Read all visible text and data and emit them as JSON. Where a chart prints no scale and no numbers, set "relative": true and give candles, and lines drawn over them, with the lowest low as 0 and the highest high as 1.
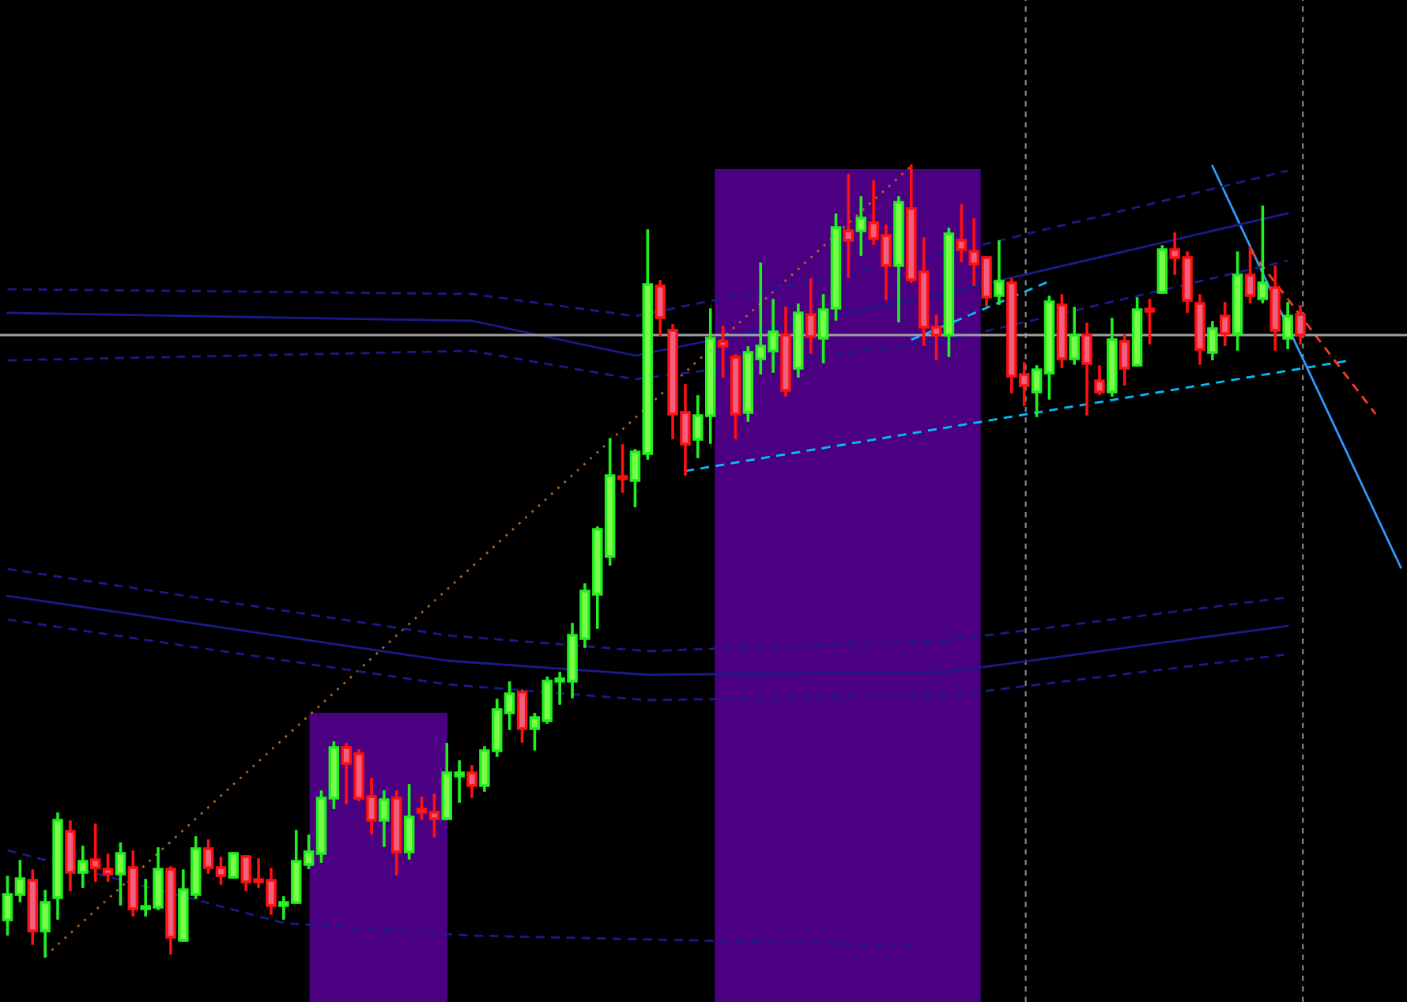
{
  "chart_data": {
    "type": "candlestick",
    "relative": true,
    "categories": [
      null,
      null,
      null,
      null,
      null,
      null,
      null,
      null,
      null,
      null,
      null,
      null,
      null,
      null,
      null,
      null,
      null,
      null,
      null,
      null,
      null,
      null,
      null,
      null,
      null,
      null,
      null,
      null,
      null,
      null,
      null,
      null,
      null,
      null,
      null,
      null,
      null,
      null,
      null,
      null,
      null,
      null,
      null,
      null,
      null,
      null,
      null,
      null,
      null,
      null,
      null,
      null,
      null,
      null,
      null,
      null,
      null,
      null,
      null,
      null,
      null,
      null,
      null,
      null,
      null,
      null,
      null,
      null,
      null,
      null,
      null,
      null,
      null,
      null,
      null,
      null,
      null,
      null,
      null,
      null,
      null,
      null,
      null,
      null,
      null,
      null,
      null,
      null,
      null,
      null,
      null,
      null,
      null,
      null,
      null,
      null,
      null,
      null,
      null,
      null,
      null,
      null,
      null,
      null,
      null,
      null,
      null,
      null,
      null,
      null,
      null,
      null
    ],
    "ohlc": [
      [
        0.046,
        0.1,
        0.028,
        0.078
      ],
      [
        0.078,
        0.12,
        0.07,
        0.098
      ],
      [
        0.096,
        0.108,
        0.016,
        0.032
      ],
      [
        0.032,
        0.082,
        0,
        0.068
      ],
      [
        0.074,
        0.18,
        0.048,
        0.172
      ],
      [
        0.158,
        0.17,
        0.084,
        0.106
      ],
      [
        0.106,
        0.138,
        0.088,
        0.12
      ],
      [
        0.122,
        0.166,
        0.096,
        0.112
      ],
      [
        0.11,
        0.128,
        0.096,
        0.104
      ],
      [
        0.104,
        0.142,
        0.066,
        0.13
      ],
      [
        0.112,
        0.132,
        0.052,
        0.06
      ],
      [
        0.06,
        0.096,
        0.052,
        0.062
      ],
      [
        0.062,
        0.136,
        0.06,
        0.11
      ],
      [
        0.11,
        0.112,
        0.004,
        0.024
      ],
      [
        0.02,
        0.108,
        0.02,
        0.084
      ],
      [
        0.078,
        0.15,
        0.074,
        0.136
      ],
      [
        0.136,
        0.146,
        0.106,
        0.112
      ],
      [
        0.112,
        0.124,
        0.092,
        0.102
      ],
      [
        0.1,
        0.13,
        0.1,
        0.13
      ],
      [
        0.126,
        0.126,
        0.084,
        0.094
      ],
      [
        0.096,
        0.122,
        0.088,
        0.094
      ],
      [
        0.096,
        0.11,
        0.054,
        0.064
      ],
      [
        0.064,
        0.074,
        0.048,
        0.068
      ],
      [
        0.068,
        0.158,
        0.068,
        0.12
      ],
      [
        0.116,
        0.152,
        0.112,
        0.132
      ],
      [
        0.13,
        0.208,
        0.12,
        0.2
      ],
      [
        0.2,
        0.27,
        0.188,
        0.264
      ],
      [
        0.264,
        0.268,
        0.194,
        0.244
      ],
      [
        0.256,
        0.26,
        0.198,
        0.2
      ],
      [
        0.202,
        0.224,
        0.156,
        0.172
      ],
      [
        0.172,
        0.208,
        0.14,
        0.198
      ],
      [
        0.2,
        0.208,
        0.104,
        0.132
      ],
      [
        0.132,
        0.216,
        0.124,
        0.176
      ],
      [
        0.186,
        0.2,
        0.174,
        0.182
      ],
      [
        0.182,
        0.204,
        0.152,
        0.174
      ],
      [
        0.174,
        0.268,
        0.174,
        0.232
      ],
      [
        0.228,
        0.246,
        0.196,
        0.232
      ],
      [
        0.232,
        0.24,
        0.202,
        0.216
      ],
      [
        0.216,
        0.264,
        0.21,
        0.26
      ],
      [
        0.26,
        0.324,
        0.254,
        0.312
      ],
      [
        0.308,
        0.346,
        0.288,
        0.332
      ],
      [
        0.334,
        0.336,
        0.272,
        0.288
      ],
      [
        0.288,
        0.306,
        0.262,
        0.302
      ],
      [
        0.298,
        0.352,
        0.296,
        0.348
      ],
      [
        0.348,
        0.358,
        0.32,
        0.35
      ],
      [
        0.348,
        0.42,
        0.328,
        0.406
      ],
      [
        0.402,
        0.47,
        0.392,
        0.462
      ],
      [
        0.458,
        0.542,
        0.416,
        0.54
      ],
      [
        0.506,
        0.654,
        0.496,
        0.608
      ],
      [
        0.606,
        0.646,
        0.588,
        0.604
      ],
      [
        0.602,
        0.64,
        0.57,
        0.638
      ],
      [
        0.636,
        0.918,
        0.63,
        0.85
      ],
      [
        0.848,
        0.854,
        0.786,
        0.808
      ],
      [
        0.792,
        0.798,
        0.656,
        0.686
      ],
      [
        0.688,
        0.722,
        0.61,
        0.648
      ],
      [
        0.654,
        0.708,
        0.632,
        0.684
      ],
      [
        0.684,
        0.818,
        0.65,
        0.782
      ],
      [
        0.778,
        0.796,
        0.734,
        0.772
      ],
      [
        0.758,
        0.76,
        0.656,
        0.686
      ],
      [
        0.688,
        0.77,
        0.678,
        0.764
      ],
      [
        0.756,
        0.876,
        0.738,
        0.772
      ],
      [
        0.766,
        0.83,
        0.74,
        0.79
      ],
      [
        0.786,
        0.82,
        0.71,
        0.716
      ],
      [
        0.744,
        0.824,
        0.734,
        0.814
      ],
      [
        0.812,
        0.856,
        0.764,
        0.784
      ],
      [
        0.782,
        0.836,
        0.752,
        0.818
      ],
      [
        0.82,
        0.938,
        0.806,
        0.922
      ],
      [
        0.918,
        0.988,
        0.86,
        0.906
      ],
      [
        0.918,
        0.96,
        0.888,
        0.934
      ],
      [
        0.928,
        0.98,
        0.902,
        0.908
      ],
      [
        0.912,
        0.924,
        0.832,
        0.874
      ],
      [
        0.874,
        0.96,
        0.804,
        0.954
      ],
      [
        0.946,
        1.0,
        0.854,
        0.856
      ],
      [
        0.866,
        0.908,
        0.774,
        0.796
      ],
      [
        0.796,
        0.81,
        0.756,
        0.786
      ],
      [
        0.786,
        0.92,
        0.76,
        0.914
      ],
      [
        0.906,
        0.95,
        0.88,
        0.894
      ],
      [
        0.892,
        0.932,
        0.85,
        0.876
      ],
      [
        0.884,
        0.884,
        0.824,
        0.834
      ],
      [
        0.836,
        0.904,
        0.826,
        0.854
      ],
      [
        0.852,
        0.856,
        0.714,
        0.734
      ],
      [
        0.736,
        0.75,
        0.698,
        0.722
      ],
      [
        0.714,
        0.746,
        0.684,
        0.742
      ],
      [
        0.738,
        0.834,
        0.706,
        0.828
      ],
      [
        0.824,
        0.836,
        0.746,
        0.756
      ],
      [
        0.756,
        0.82,
        0.75,
        0.786
      ],
      [
        0.786,
        0.8,
        0.686,
        0.75
      ],
      [
        0.728,
        0.746,
        0.712,
        0.714
      ],
      [
        0.714,
        0.806,
        0.71,
        0.78
      ],
      [
        0.778,
        0.786,
        0.724,
        0.744
      ],
      [
        0.748,
        0.832,
        0.748,
        0.818
      ],
      [
        0.818,
        0.83,
        0.776,
        0.816
      ],
      [
        0.84,
        0.898,
        0.84,
        0.894
      ],
      [
        0.894,
        0.914,
        0.864,
        0.884
      ],
      [
        0.884,
        0.89,
        0.816,
        0.83
      ],
      [
        0.826,
        0.836,
        0.75,
        0.768
      ],
      [
        0.764,
        0.802,
        0.756,
        0.794
      ],
      [
        0.81,
        0.826,
        0.774,
        0.788
      ],
      [
        0.788,
        0.89,
        0.768,
        0.862
      ],
      [
        0.862,
        0.896,
        0.828,
        0.836
      ],
      [
        0.832,
        0.948,
        0.828,
        0.852
      ],
      [
        0.846,
        0.872,
        0.768,
        0.792
      ],
      [
        0.782,
        0.826,
        0.77,
        0.81
      ],
      [
        0.812,
        0.822,
        0.776,
        0.786
      ],
      null,
      null,
      null,
      null,
      null,
      null,
      null,
      null
    ],
    "series": [
      {
        "type": "line",
        "color": "#b5651d",
        "line_style": "dotted",
        "values": [
          null,
          null,
          null,
          0,
          null,
          null,
          null,
          null,
          null,
          null,
          null,
          null,
          null,
          null,
          null,
          null,
          null,
          null,
          null,
          null,
          null,
          null,
          null,
          null,
          null,
          null,
          null,
          null,
          null,
          null,
          null,
          null,
          null,
          null,
          null,
          null,
          null,
          null,
          null,
          null,
          null,
          null,
          null,
          null,
          null,
          null,
          null,
          null,
          null,
          null,
          null,
          null,
          null,
          null,
          null,
          null,
          null,
          null,
          null,
          null,
          null,
          null,
          null,
          null,
          null,
          null,
          null,
          null,
          null,
          null,
          null,
          null,
          1.0,
          null,
          null,
          null,
          null,
          null,
          null,
          null,
          null,
          null,
          null,
          null,
          null,
          null,
          null,
          null,
          null,
          null,
          null,
          null,
          null,
          null,
          null,
          null,
          null,
          null,
          null,
          null,
          null,
          null,
          null,
          null,
          null,
          null,
          null,
          null,
          null,
          null,
          null,
          null
        ]
      },
      {
        "type": "line",
        "color": "#00bfff",
        "line_style": "dashed",
        "values": [
          null,
          null,
          null,
          null,
          null,
          null,
          null,
          null,
          null,
          null,
          null,
          null,
          null,
          null,
          null,
          null,
          null,
          null,
          null,
          null,
          null,
          null,
          null,
          null,
          null,
          null,
          null,
          null,
          null,
          null,
          null,
          null,
          null,
          null,
          null,
          null,
          null,
          null,
          null,
          null,
          null,
          null,
          null,
          null,
          null,
          null,
          null,
          null,
          null,
          null,
          null,
          null,
          null,
          null,
          0.614,
          null,
          null,
          null,
          null,
          null,
          null,
          null,
          null,
          null,
          null,
          null,
          null,
          null,
          null,
          null,
          null,
          null,
          null,
          null,
          null,
          null,
          null,
          null,
          null,
          null,
          null,
          null,
          null,
          null,
          null,
          null,
          null,
          null,
          null,
          null,
          null,
          null,
          null,
          null,
          null,
          null,
          null,
          null,
          null,
          null,
          null,
          null,
          null,
          null,
          null,
          null,
          null,
          0.754,
          null,
          null,
          null,
          null
        ]
      },
      {
        "type": "line",
        "color": "#00bfff",
        "line_style": "dashed",
        "values": [
          null,
          null,
          null,
          null,
          null,
          null,
          null,
          null,
          null,
          null,
          null,
          null,
          null,
          null,
          null,
          null,
          null,
          null,
          null,
          null,
          null,
          null,
          null,
          null,
          null,
          null,
          null,
          null,
          null,
          null,
          null,
          null,
          null,
          null,
          null,
          null,
          null,
          null,
          null,
          null,
          null,
          null,
          null,
          null,
          null,
          null,
          null,
          null,
          null,
          null,
          null,
          null,
          null,
          null,
          null,
          null,
          null,
          null,
          null,
          null,
          null,
          null,
          null,
          null,
          null,
          null,
          null,
          null,
          null,
          null,
          null,
          null,
          0.78,
          null,
          null,
          null,
          null,
          null,
          null,
          null,
          null,
          null,
          null,
          0.854,
          null,
          null,
          null,
          null,
          null,
          null,
          null,
          null,
          null,
          null,
          null,
          null,
          null,
          null,
          null,
          null,
          null,
          null,
          null,
          null,
          null,
          null,
          null,
          null,
          null,
          null,
          null,
          null
        ]
      },
      {
        "type": "line",
        "color": "#3399ff",
        "line_style": "solid",
        "values": [
          null,
          null,
          null,
          null,
          null,
          null,
          null,
          null,
          null,
          null,
          null,
          null,
          null,
          null,
          null,
          null,
          null,
          null,
          null,
          null,
          null,
          null,
          null,
          null,
          null,
          null,
          null,
          null,
          null,
          null,
          null,
          null,
          null,
          null,
          null,
          null,
          null,
          null,
          null,
          null,
          null,
          null,
          null,
          null,
          null,
          null,
          null,
          null,
          null,
          null,
          null,
          null,
          null,
          null,
          null,
          null,
          null,
          null,
          null,
          null,
          null,
          null,
          null,
          null,
          null,
          null,
          null,
          null,
          null,
          null,
          null,
          null,
          null,
          null,
          null,
          null,
          null,
          null,
          null,
          null,
          null,
          null,
          null,
          null,
          null,
          null,
          null,
          null,
          null,
          null,
          null,
          null,
          null,
          null,
          null,
          null,
          1.0,
          null,
          null,
          null,
          null,
          null,
          null,
          null,
          null,
          null,
          null,
          null,
          null,
          null,
          null,
          0.492
        ]
      },
      {
        "type": "line",
        "color": "#ff3b1f",
        "line_style": "dashed",
        "values": [
          null,
          null,
          null,
          null,
          null,
          null,
          null,
          null,
          null,
          null,
          null,
          null,
          null,
          null,
          null,
          null,
          null,
          null,
          null,
          null,
          null,
          null,
          null,
          null,
          null,
          null,
          null,
          null,
          null,
          null,
          null,
          null,
          null,
          null,
          null,
          null,
          null,
          null,
          null,
          null,
          null,
          null,
          null,
          null,
          null,
          null,
          null,
          null,
          null,
          null,
          null,
          null,
          null,
          null,
          null,
          null,
          null,
          null,
          null,
          null,
          null,
          null,
          null,
          null,
          null,
          null,
          null,
          null,
          null,
          null,
          null,
          null,
          null,
          null,
          null,
          null,
          null,
          null,
          null,
          null,
          null,
          null,
          null,
          null,
          null,
          null,
          null,
          null,
          null,
          null,
          null,
          null,
          null,
          null,
          null,
          null,
          null,
          null,
          null,
          0.894,
          null,
          null,
          null,
          null,
          null,
          null,
          null,
          null,
          null,
          0.686,
          null,
          null
        ]
      },
      {
        "type": "line",
        "color": "#1a1a8c",
        "line_style": "dashed",
        "values": [
          0.844,
          null,
          null,
          null,
          null,
          null,
          null,
          null,
          null,
          null,
          null,
          null,
          null,
          null,
          null,
          null,
          null,
          null,
          null,
          null,
          null,
          null,
          null,
          null,
          null,
          null,
          null,
          null,
          null,
          null,
          null,
          null,
          null,
          null,
          null,
          null,
          null,
          0.838,
          null,
          null,
          null,
          null,
          null,
          null,
          null,
          null,
          null,
          null,
          null,
          null,
          0.81,
          null,
          null,
          null,
          null,
          null,
          null,
          null,
          null,
          null,
          null,
          null,
          null,
          null,
          null,
          null,
          null,
          null,
          null,
          null,
          null,
          null,
          null,
          null,
          null,
          0.89,
          null,
          null,
          null,
          null,
          null,
          null,
          null,
          null,
          null,
          null,
          null,
          null,
          null,
          null,
          null,
          null,
          null,
          null,
          null,
          null,
          null,
          null,
          null,
          null,
          null,
          null,
          0.994,
          null,
          null,
          null,
          null,
          null,
          null,
          null,
          null,
          null
        ]
      },
      {
        "type": "line",
        "color": "#1a1a8c",
        "line_style": "solid",
        "values": [
          0.814,
          null,
          null,
          null,
          null,
          null,
          null,
          null,
          null,
          null,
          null,
          null,
          null,
          null,
          null,
          null,
          null,
          null,
          null,
          null,
          null,
          null,
          null,
          null,
          null,
          null,
          null,
          null,
          null,
          null,
          null,
          null,
          null,
          null,
          null,
          null,
          null,
          0.804,
          null,
          null,
          null,
          null,
          null,
          null,
          null,
          null,
          null,
          null,
          null,
          null,
          0.76,
          null,
          null,
          null,
          null,
          null,
          null,
          null,
          null,
          null,
          null,
          null,
          null,
          null,
          null,
          null,
          null,
          null,
          null,
          null,
          null,
          null,
          null,
          null,
          null,
          0.84,
          null,
          null,
          null,
          null,
          null,
          null,
          null,
          null,
          null,
          null,
          null,
          null,
          null,
          null,
          null,
          null,
          null,
          null,
          null,
          null,
          null,
          null,
          null,
          null,
          null,
          null,
          0.94,
          null,
          null,
          null,
          null,
          null,
          null,
          null,
          null,
          null
        ]
      },
      {
        "type": "line",
        "color": "#1a1a8c",
        "line_style": "dashed",
        "values": [
          0.754,
          null,
          null,
          null,
          null,
          null,
          null,
          null,
          null,
          null,
          null,
          null,
          null,
          null,
          null,
          null,
          null,
          null,
          null,
          null,
          null,
          null,
          null,
          null,
          null,
          null,
          null,
          null,
          null,
          null,
          null,
          null,
          null,
          null,
          null,
          null,
          null,
          0.766,
          null,
          null,
          null,
          null,
          null,
          null,
          null,
          null,
          null,
          null,
          null,
          null,
          0.73,
          null,
          null,
          null,
          null,
          null,
          null,
          null,
          null,
          null,
          null,
          null,
          null,
          null,
          null,
          null,
          null,
          null,
          null,
          null,
          null,
          null,
          null,
          null,
          null,
          0.78,
          null,
          null,
          null,
          null,
          null,
          null,
          null,
          null,
          null,
          null,
          null,
          null,
          null,
          null,
          null,
          null,
          null,
          null,
          null,
          null,
          null,
          null,
          null,
          null,
          null,
          null,
          0.88,
          null,
          null,
          null,
          null,
          null,
          null,
          null,
          null,
          null
        ]
      },
      {
        "type": "line",
        "color": "#1a1a8c",
        "line_style": "dashed",
        "values": [
          0.49,
          null,
          null,
          null,
          null,
          null,
          null,
          null,
          null,
          null,
          null,
          null,
          null,
          null,
          null,
          null,
          null,
          null,
          null,
          null,
          null,
          null,
          null,
          null,
          null,
          null,
          null,
          null,
          null,
          null,
          null,
          null,
          null,
          null,
          null,
          0.406,
          null,
          null,
          null,
          null,
          null,
          null,
          null,
          null,
          null,
          null,
          null,
          null,
          null,
          null,
          null,
          0.386,
          null,
          null,
          null,
          null,
          null,
          null,
          null,
          null,
          null,
          null,
          null,
          null,
          null,
          null,
          null,
          null,
          null,
          null,
          null,
          null,
          null,
          null,
          null,
          0.4,
          null,
          null,
          null,
          null,
          null,
          null,
          null,
          null,
          null,
          null,
          null,
          null,
          null,
          null,
          null,
          null,
          null,
          null,
          null,
          null,
          null,
          null,
          null,
          null,
          null,
          null,
          0.454,
          null,
          null,
          null,
          null,
          null,
          null,
          null,
          null,
          null
        ]
      },
      {
        "type": "line",
        "color": "#1a1a8c",
        "line_style": "solid",
        "values": [
          0.456,
          null,
          null,
          null,
          null,
          null,
          null,
          null,
          null,
          null,
          null,
          null,
          null,
          null,
          null,
          null,
          null,
          null,
          null,
          null,
          null,
          null,
          null,
          null,
          null,
          null,
          null,
          null,
          null,
          null,
          null,
          null,
          null,
          null,
          null,
          0.374,
          null,
          null,
          null,
          null,
          null,
          null,
          null,
          null,
          null,
          null,
          null,
          null,
          null,
          null,
          null,
          0.356,
          null,
          null,
          null,
          null,
          null,
          null,
          null,
          null,
          null,
          null,
          null,
          null,
          null,
          null,
          null,
          null,
          null,
          null,
          null,
          null,
          null,
          null,
          null,
          0.36,
          null,
          null,
          null,
          null,
          null,
          null,
          null,
          null,
          null,
          null,
          null,
          null,
          null,
          null,
          null,
          null,
          null,
          null,
          null,
          null,
          null,
          null,
          null,
          null,
          null,
          null,
          0.418,
          null,
          null,
          null,
          null,
          null,
          null,
          null,
          null,
          null
        ]
      },
      {
        "type": "line",
        "color": "#1a1a8c",
        "line_style": "dashed",
        "values": [
          0.426,
          null,
          null,
          null,
          null,
          null,
          null,
          null,
          null,
          null,
          null,
          null,
          null,
          null,
          null,
          null,
          null,
          null,
          null,
          null,
          null,
          null,
          null,
          null,
          null,
          null,
          null,
          null,
          null,
          null,
          null,
          null,
          null,
          null,
          null,
          0.344,
          null,
          null,
          null,
          null,
          null,
          null,
          null,
          null,
          null,
          null,
          null,
          null,
          null,
          null,
          null,
          0.324,
          null,
          null,
          null,
          null,
          null,
          null,
          null,
          null,
          null,
          null,
          null,
          null,
          null,
          null,
          null,
          null,
          null,
          null,
          null,
          null,
          null,
          null,
          null,
          0.33,
          null,
          null,
          null,
          null,
          null,
          null,
          null,
          null,
          null,
          null,
          null,
          null,
          null,
          null,
          null,
          null,
          null,
          null,
          null,
          null,
          null,
          null,
          null,
          null,
          null,
          null,
          0.382,
          null,
          null,
          null,
          null,
          null,
          null,
          null,
          null,
          null
        ]
      },
      {
        "type": "line",
        "color": "#1a1a8c",
        "line_style": "dashed",
        "values": [
          0.134,
          null,
          null,
          null,
          null,
          null,
          null,
          null,
          null,
          null,
          null,
          null,
          0.084,
          null,
          null,
          null,
          null,
          null,
          null,
          null,
          null,
          null,
          0.042,
          null,
          null,
          null,
          null,
          null,
          null,
          null,
          null,
          null,
          null,
          null,
          null,
          null,
          null,
          0.026,
          null,
          null,
          null,
          null,
          null,
          null,
          null,
          null,
          null,
          null,
          null,
          null,
          null,
          null,
          null,
          null,
          null,
          null,
          null,
          null,
          null,
          null,
          null,
          null,
          null,
          null,
          null,
          null,
          null,
          null,
          null,
          null,
          null,
          null,
          0.014,
          null,
          null,
          null,
          null,
          null,
          null,
          null,
          null,
          null,
          null,
          null,
          null,
          null,
          null,
          null,
          null,
          null,
          null,
          null,
          null,
          null,
          null,
          null,
          null,
          null,
          null,
          null,
          null,
          null,
          null,
          null,
          null,
          null,
          null,
          null,
          null,
          null,
          null,
          null
        ]
      }
    ],
    "ref_lines": [
      {
        "axis": "y",
        "value": 0.786,
        "color": "#a0a0a0",
        "line_style": "solid"
      }
    ]
  }
}
